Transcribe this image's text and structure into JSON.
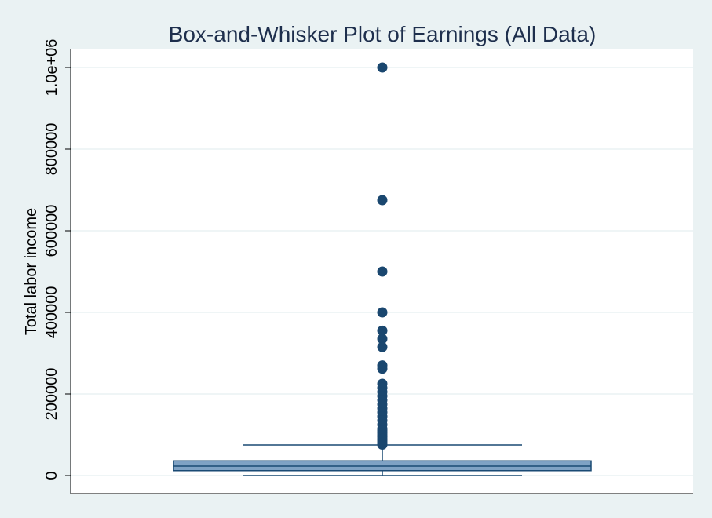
{
  "chart_data": {
    "type": "box",
    "title": "Box-and-Whisker Plot of Earnings (All Data)",
    "xlabel": "",
    "ylabel": "Total labor income",
    "ylim": [
      -45000,
      1045000
    ],
    "yticks": [
      0,
      200000,
      400000,
      600000,
      800000,
      1000000
    ],
    "ytick_labels": [
      "0",
      "200000",
      "400000",
      "600000",
      "800000",
      "1.0e+06"
    ],
    "grid": true,
    "box": {
      "whisker_low": 0,
      "q1": 12000,
      "median": 23000,
      "q3": 36000,
      "whisker_high": 75000
    },
    "outliers": [
      1000000,
      675000,
      500000,
      400000,
      355000,
      335000,
      315000,
      270000,
      262000,
      225000,
      215000,
      205000,
      195000,
      185000,
      175000,
      165000,
      155000,
      145000,
      135000,
      125000,
      115000,
      110000,
      105000,
      100000,
      95000,
      90000,
      85000,
      80000,
      76000
    ],
    "colors": {
      "box_fill": "#7fa2c4",
      "box_stroke": "#1a4a73",
      "marker": "#1a476f",
      "grid": "#eaf2f3",
      "plot_bg": "#ffffff",
      "outer_bg": "#eaf2f3",
      "title": "#1e2f4d"
    }
  }
}
